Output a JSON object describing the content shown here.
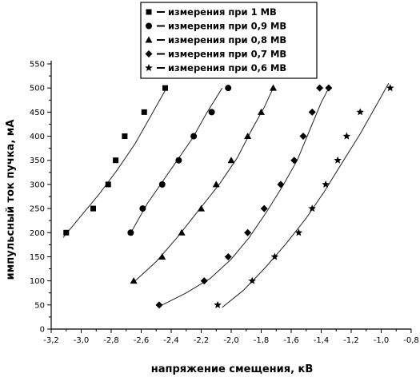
{
  "chart_data": {
    "type": "scatter",
    "xlabel": "напряжение смещения, кВ",
    "ylabel": "импульсный ток пучка, мА",
    "xlim": [
      -3.2,
      -0.8
    ],
    "ylim": [
      0,
      550
    ],
    "xticks": [
      -3.2,
      -3.0,
      -2.8,
      -2.6,
      -2.4,
      -2.2,
      -2.0,
      -1.8,
      -1.6,
      -1.4,
      -1.2,
      -1.0,
      -0.8
    ],
    "xtick_labels": [
      "-3,2",
      "-3,0",
      "-2,8",
      "-2,6",
      "-2,4",
      "-2,2",
      "-2,0",
      "-1,8",
      "-1,6",
      "-1,4",
      "-1,2",
      "-1,0",
      "-0,8"
    ],
    "yticks": [
      0,
      50,
      100,
      150,
      200,
      250,
      300,
      350,
      400,
      450,
      500,
      550
    ],
    "grid": false,
    "legend_position": "top-center",
    "series": [
      {
        "name": "измерения при 1 МВ",
        "marker": "square",
        "x": [
          -3.1,
          -2.92,
          -2.82,
          -2.77,
          -2.71,
          -2.58,
          -2.44
        ],
        "y": [
          200,
          250,
          300,
          350,
          400,
          450,
          500
        ],
        "fit_x": [
          -3.12,
          -3.0,
          -2.88,
          -2.76,
          -2.64,
          -2.54,
          -2.44
        ],
        "fit_y": [
          190,
          235,
          280,
          330,
          385,
          440,
          495
        ]
      },
      {
        "name": "измерения при 0,9 МВ",
        "marker": "circle",
        "x": [
          -2.67,
          -2.59,
          -2.46,
          -2.35,
          -2.25,
          -2.13,
          -2.02
        ],
        "y": [
          200,
          250,
          300,
          350,
          400,
          450,
          500
        ],
        "fit_x": [
          -2.66,
          -2.56,
          -2.46,
          -2.36,
          -2.26,
          -2.16,
          -2.06
        ],
        "fit_y": [
          205,
          260,
          305,
          350,
          395,
          450,
          500
        ]
      },
      {
        "name": "измерения при 0,8 МВ",
        "marker": "triangle",
        "x": [
          -2.65,
          -2.46,
          -2.33,
          -2.2,
          -2.1,
          -2.0,
          -1.89,
          -1.8,
          -1.72
        ],
        "y": [
          100,
          150,
          200,
          250,
          300,
          350,
          400,
          450,
          500
        ],
        "fit_x": [
          -2.64,
          -2.5,
          -2.36,
          -2.22,
          -2.08,
          -1.96,
          -1.86,
          -1.78,
          -1.72
        ],
        "fit_y": [
          100,
          140,
          190,
          245,
          300,
          355,
          415,
          460,
          500
        ]
      },
      {
        "name": "измерения при 0,7 МВ",
        "marker": "diamond",
        "x": [
          -2.48,
          -2.18,
          -2.02,
          -1.89,
          -1.78,
          -1.67,
          -1.58,
          -1.52,
          -1.46,
          -1.41,
          -1.35
        ],
        "y": [
          50,
          100,
          150,
          200,
          250,
          300,
          350,
          400,
          450,
          500,
          500
        ],
        "fit_x": [
          -2.46,
          -2.3,
          -2.14,
          -2.0,
          -1.88,
          -1.76,
          -1.66,
          -1.56,
          -1.48,
          -1.4,
          -1.35
        ],
        "fit_y": [
          50,
          75,
          105,
          145,
          190,
          245,
          295,
          350,
          410,
          470,
          500
        ]
      },
      {
        "name": "измерения при 0,6 МВ",
        "marker": "star",
        "x": [
          -2.09,
          -1.86,
          -1.71,
          -1.55,
          -1.46,
          -1.37,
          -1.29,
          -1.23,
          -1.14,
          -0.94
        ],
        "y": [
          50,
          100,
          150,
          200,
          250,
          300,
          350,
          400,
          450,
          500
        ],
        "fit_x": [
          -2.06,
          -1.92,
          -1.78,
          -1.64,
          -1.5,
          -1.38,
          -1.26,
          -1.14,
          -1.04,
          -0.95
        ],
        "fit_y": [
          45,
          80,
          125,
          175,
          230,
          285,
          345,
          405,
          460,
          510
        ]
      }
    ]
  }
}
